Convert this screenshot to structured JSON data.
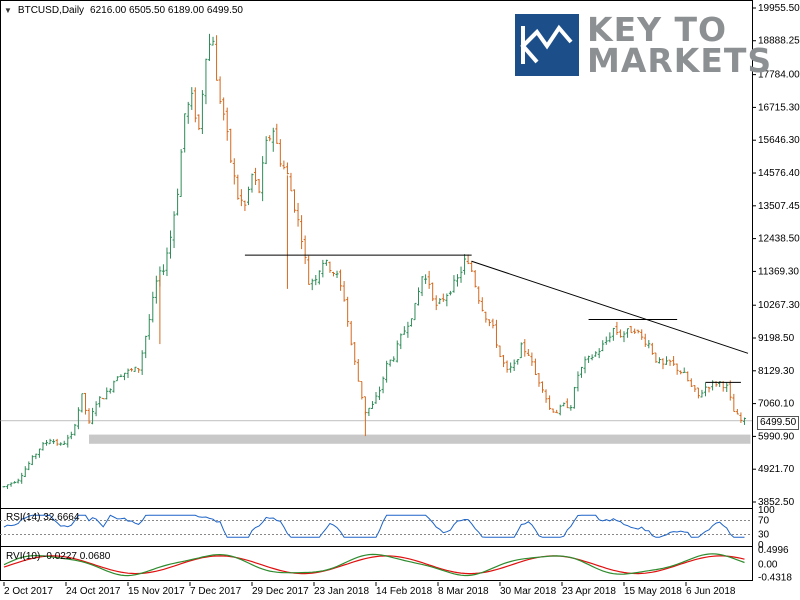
{
  "header": {
    "symbol": "BTCUSD,Daily",
    "ohlc": "6216.00 6505.50 6189.00 6499.50"
  },
  "logo": {
    "line1": "KEY TO",
    "line2": "MARKETS"
  },
  "rsi": {
    "label": "RSI(14) 32.6664",
    "levels": [
      "100",
      "70",
      "30",
      "0"
    ]
  },
  "rvi": {
    "label": "RVI(10) -0.0227 0.0680",
    "levels": [
      "0.4996",
      "0.00",
      "-0.4318"
    ]
  },
  "price_axis": [
    "19955.50",
    "18888.25",
    "17784.00",
    "16715.30",
    "15646.30",
    "14576.40",
    "13507.45",
    "12438.50",
    "11369.30",
    "10267.30",
    "9198.50",
    "8129.30",
    "7060.10",
    "5990.90",
    "4921.70",
    "3852.50"
  ],
  "current_price": "6499.50",
  "colors": {
    "up": "#2e8b57",
    "down": "#d2691e",
    "line": "#000000",
    "support_zone": "#c8c8c8",
    "rsi_line": "#1e64c8",
    "rvi_main": "#2e8b2e",
    "rvi_signal": "#e01010"
  },
  "chart_data": {
    "type": "candlestick",
    "x_labels": [
      "2 Oct 2017",
      "24 Oct 2017",
      "15 Nov 2017",
      "7 Dec 2017",
      "29 Dec 2017",
      "23 Jan 2018",
      "14 Feb 2018",
      "8 Mar 2018",
      "30 Mar 2018",
      "23 Apr 2018",
      "15 May 2018",
      "6 Jun 2018"
    ],
    "ylim": [
      3852.5,
      19955.5
    ],
    "close_path": [
      [
        0,
        4350
      ],
      [
        4,
        4600
      ],
      [
        7,
        5100
      ],
      [
        10,
        5600
      ],
      [
        13,
        5900
      ],
      [
        16,
        5700
      ],
      [
        19,
        6000
      ],
      [
        22,
        7300
      ],
      [
        24,
        6400
      ],
      [
        26,
        7100
      ],
      [
        29,
        7400
      ],
      [
        32,
        8000
      ],
      [
        35,
        8100
      ],
      [
        38,
        8200
      ],
      [
        41,
        9800
      ],
      [
        43,
        11000
      ],
      [
        45,
        11500
      ],
      [
        47,
        12500
      ],
      [
        49,
        14000
      ],
      [
        51,
        16500
      ],
      [
        53,
        17000
      ],
      [
        55,
        16000
      ],
      [
        57,
        18500
      ],
      [
        59,
        19000
      ],
      [
        60,
        17500
      ],
      [
        62,
        16500
      ],
      [
        64,
        15000
      ],
      [
        66,
        13800
      ],
      [
        68,
        13500
      ],
      [
        70,
        14500
      ],
      [
        72,
        14000
      ],
      [
        74,
        15500
      ],
      [
        76,
        16000
      ],
      [
        78,
        15000
      ],
      [
        80,
        14500
      ],
      [
        82,
        13500
      ],
      [
        84,
        12500
      ],
      [
        86,
        11000
      ],
      [
        88,
        11200
      ],
      [
        90,
        11700
      ],
      [
        92,
        11500
      ],
      [
        94,
        11200
      ],
      [
        96,
        10500
      ],
      [
        98,
        9000
      ],
      [
        100,
        7800
      ],
      [
        102,
        6800
      ],
      [
        104,
        7000
      ],
      [
        106,
        7500
      ],
      [
        108,
        8300
      ],
      [
        110,
        8600
      ],
      [
        112,
        9200
      ],
      [
        114,
        9700
      ],
      [
        116,
        10200
      ],
      [
        118,
        11200
      ],
      [
        120,
        11000
      ],
      [
        122,
        10200
      ],
      [
        124,
        10500
      ],
      [
        126,
        10800
      ],
      [
        128,
        11100
      ],
      [
        130,
        11700
      ],
      [
        132,
        11400
      ],
      [
        134,
        10500
      ],
      [
        136,
        9900
      ],
      [
        138,
        9500
      ],
      [
        140,
        8600
      ],
      [
        142,
        8100
      ],
      [
        144,
        8300
      ],
      [
        146,
        8900
      ],
      [
        148,
        8700
      ],
      [
        150,
        8000
      ],
      [
        152,
        7600
      ],
      [
        154,
        6900
      ],
      [
        156,
        6800
      ],
      [
        158,
        7000
      ],
      [
        160,
        7000
      ],
      [
        162,
        8000
      ],
      [
        164,
        8400
      ],
      [
        166,
        8600
      ],
      [
        168,
        8800
      ],
      [
        170,
        9100
      ],
      [
        172,
        9500
      ],
      [
        174,
        9300
      ],
      [
        176,
        9400
      ],
      [
        178,
        9500
      ],
      [
        180,
        9200
      ],
      [
        182,
        9000
      ],
      [
        184,
        8500
      ],
      [
        186,
        8300
      ],
      [
        188,
        8400
      ],
      [
        190,
        8200
      ],
      [
        192,
        8000
      ],
      [
        194,
        7600
      ],
      [
        196,
        7300
      ],
      [
        198,
        7600
      ],
      [
        200,
        7700
      ],
      [
        202,
        7750
      ],
      [
        204,
        7600
      ],
      [
        206,
        6800
      ],
      [
        208,
        6500
      ],
      [
        209,
        6500
      ]
    ],
    "lines": [
      {
        "from": [
          68,
          11900
        ],
        "to": [
          132,
          11900
        ]
      },
      {
        "from": [
          132,
          11700
        ],
        "to": [
          210,
          8700
        ]
      },
      {
        "from": [
          165,
          9800
        ],
        "to": [
          190,
          9800
        ]
      },
      {
        "from": [
          198,
          7750
        ],
        "to": [
          208,
          7750
        ]
      }
    ],
    "support_zone": [
      5750,
      6050
    ],
    "current_price_line": 6499.5
  }
}
